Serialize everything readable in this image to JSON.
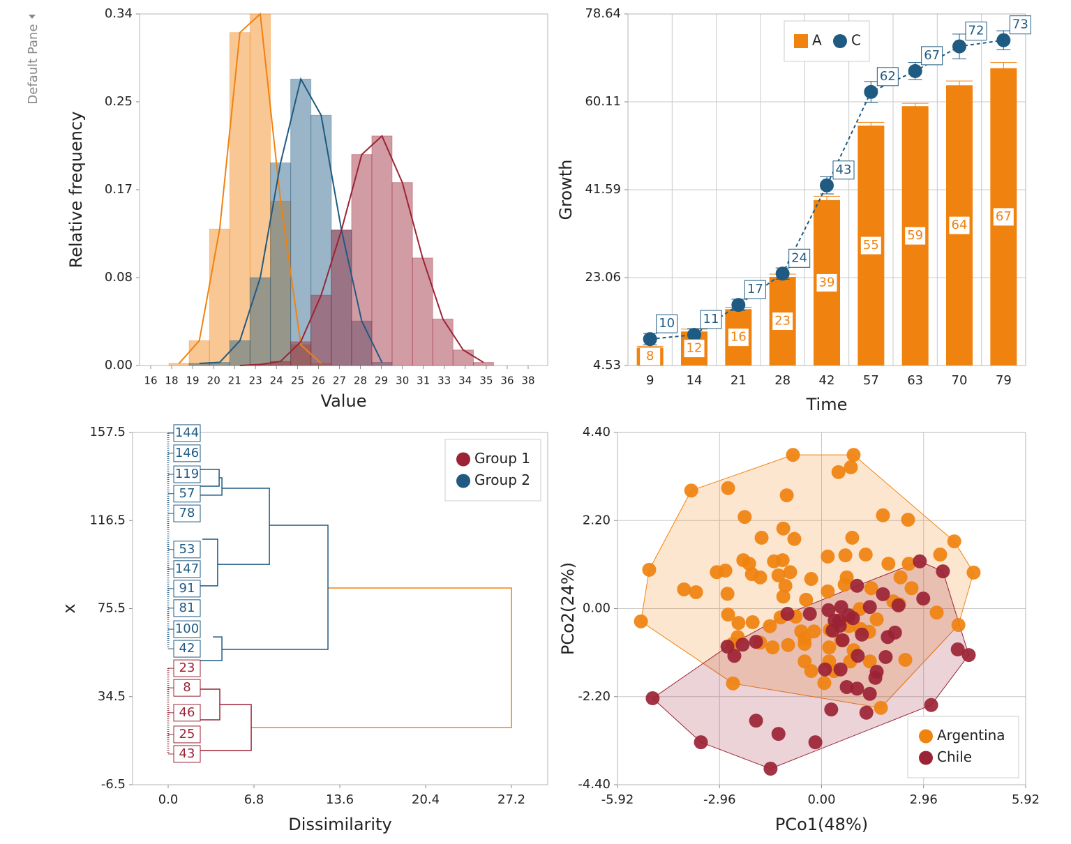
{
  "pane_label": "Default Pane",
  "chart_data": [
    {
      "type": "histogram",
      "x_label": "Value",
      "y_label": "Relative frequency",
      "xlim": [
        15.35,
        39.14
      ],
      "ylim": [
        0,
        0.34
      ],
      "xticks": [
        16,
        {
          "value": 17.22,
          "label": "18"
        },
        {
          "value": 18.44,
          "label": "19"
        },
        {
          "value": 19.67,
          "label": "20"
        },
        {
          "value": 20.89,
          "label": "21"
        },
        {
          "value": 22.11,
          "label": "23"
        },
        {
          "value": 23.33,
          "label": "24"
        },
        {
          "value": 24.56,
          "label": "25"
        },
        {
          "value": 25.78,
          "label": "26"
        },
        27,
        {
          "value": 28.22,
          "label": "28"
        },
        {
          "value": 29.44,
          "label": "29"
        },
        {
          "value": 30.67,
          "label": "30"
        },
        {
          "value": 31.89,
          "label": "31"
        },
        {
          "value": 33.11,
          "label": "33"
        },
        {
          "value": 34.33,
          "label": "34"
        },
        {
          "value": 35.56,
          "label": "35"
        },
        {
          "value": 36.78,
          "label": "36"
        },
        38
      ],
      "yticks": [
        {
          "value": 0,
          "label": "0.00"
        },
        {
          "value": 0.085,
          "label": "0.08"
        },
        0.17,
        {
          "value": 0.255,
          "label": "0.25"
        },
        0.34
      ],
      "bins": [
        17.06,
        18.24,
        19.43,
        20.61,
        21.79,
        22.98,
        24.16,
        25.34,
        26.53,
        27.71,
        28.89,
        30.07,
        31.26,
        32.44,
        33.62,
        34.81,
        35.99
      ],
      "frequency_polygon": true,
      "grid": false,
      "series": [
        {
          "color": "#f0820f",
          "values": [
            0.002,
            0.024,
            0.132,
            0.322,
            0.34,
            0.159,
            0.02,
            0.002,
            null,
            null,
            null,
            null,
            null,
            null,
            null,
            null
          ]
        },
        {
          "color": "#1f5a82",
          "values": [
            null,
            0.002,
            0.003,
            0.024,
            0.085,
            0.196,
            0.277,
            0.242,
            0.131,
            0.043,
            0.003,
            null,
            null,
            null,
            null,
            null
          ]
        },
        {
          "color": "#9b2335",
          "values": [
            null,
            null,
            null,
            0,
            0.001,
            0.004,
            0.023,
            0.068,
            0.131,
            0.204,
            0.222,
            0.177,
            0.104,
            0.045,
            0.015,
            0.003
          ]
        }
      ]
    },
    {
      "type": "bar",
      "x_label": "Time",
      "y_label": "Growth",
      "categories": [
        "9",
        "14",
        "21",
        "28",
        "42",
        "57",
        "63",
        "70",
        "79"
      ],
      "ylim": [
        4.53,
        78.64
      ],
      "yticks": [
        4.53,
        23.06,
        41.59,
        60.11,
        78.64
      ],
      "grid": true,
      "legend": "upper-center",
      "series": [
        {
          "name": "A",
          "type": "bar",
          "color": "#f0820f",
          "values": [
            8.3,
            11.7,
            16.4,
            23.2,
            39.4,
            55.1,
            59.2,
            63.6,
            67.2
          ],
          "value_labels": [
            "8",
            "12",
            "16",
            "23",
            "39",
            "55",
            "59",
            "64",
            "67"
          ],
          "errors": [
            0.3,
            0.5,
            0.4,
            0.6,
            0.8,
            0.7,
            0.6,
            0.9,
            1.2
          ]
        },
        {
          "name": "C",
          "type": "line",
          "color": "#1f5a82",
          "dashed": true,
          "values": [
            10.1,
            11,
            17.3,
            23.9,
            42.5,
            62.2,
            66.6,
            71.8,
            73.1
          ],
          "value_labels": [
            "10",
            "11",
            "17",
            "24",
            "43",
            "62",
            "67",
            "72",
            "73"
          ],
          "errors": [
            1.2,
            1.3,
            1.2,
            1.2,
            1.8,
            2.2,
            1.8,
            2.6,
            2.0
          ]
        }
      ]
    },
    {
      "type": "dendrogram",
      "x_label": "Dissimilarity",
      "y_label": "x",
      "xlim": [
        -2.82,
        30.07
      ],
      "ylim": [
        -6.5,
        157.5
      ],
      "xticks": [
        {
          "value": 0,
          "label": "0.0"
        },
        6.8,
        13.6,
        20.4,
        27.2
      ],
      "yticks": [
        -6.5,
        34.5,
        75.5,
        116.5,
        157.5
      ],
      "grid": false,
      "legend": "upper-right",
      "links": [
        {
          "color": "#f0820f",
          "height": 27.2,
          "y": [
            85.1,
            20.1
          ],
          "x": [
            12.66,
            6.58
          ]
        },
        {
          "color": "#1f5a82",
          "height": 12.66,
          "y": [
            114.3,
            56.5
          ],
          "x": [
            8.02,
            4.26
          ]
        },
        {
          "color": "#1f5a82",
          "height": 8.02,
          "y": [
            131.5,
            96.1
          ],
          "x": [
            4.26,
            3.92
          ]
        },
        {
          "color": "#1f5a82",
          "height": 4.26,
          "y": [
            136.4,
            128.3
          ],
          "x": [
            4.04,
            2.16
          ]
        },
        {
          "color": "#1f5a82",
          "height": 4.04,
          "y": [
            140.3,
            132.5
          ],
          "x": [
            0.77,
            1.49
          ]
        },
        {
          "color": "#1f5a82",
          "height": 3.92,
          "y": [
            107.8,
            86.1
          ],
          "x": [
            2.71,
            2.27
          ]
        },
        {
          "color": "#1f5a82",
          "height": 4.26,
          "y": [
            62.3,
            51.3
          ],
          "x": [
            3.54,
            2.16
          ]
        },
        {
          "color": "#9b2335",
          "height": 6.58,
          "y": [
            30.8,
            9.4
          ],
          "x": [
            4.09,
            1.16
          ]
        },
        {
          "color": "#9b2335",
          "height": 4.09,
          "y": [
            38.0,
            23.7
          ],
          "x": [
            2.05,
            0.88
          ]
        }
      ],
      "series": [
        {
          "name": "Group 1",
          "color": "#9b2335",
          "leaves": {
            "labels": [
              "23",
              "8",
              "46",
              "25",
              "43"
            ],
            "y": [
              47.7,
              38.6,
              27.0,
              16.9,
              7.8
            ]
          }
        },
        {
          "name": "Group 2",
          "color": "#1f5a82",
          "leaves": {
            "labels": [
              "144",
              "146",
              "119",
              "57",
              "78",
              "53",
              "147",
              "91",
              "81",
              "100",
              "42"
            ],
            "y": [
              157.2,
              147.8,
              138.0,
              129.0,
              119.8,
              103.0,
              93.9,
              84.8,
              75.7,
              65.9,
              56.8
            ]
          }
        }
      ]
    },
    {
      "type": "scatter",
      "x_label": "PCo1(48%)",
      "y_label": "PCo2(24%)",
      "xlim": [
        -5.92,
        5.92
      ],
      "ylim": [
        -4.4,
        4.4
      ],
      "xticks": [
        -5.92,
        -2.96,
        {
          "value": 0,
          "label": "0.00"
        },
        2.96,
        5.92
      ],
      "yticks": [
        {
          "value": -4.4,
          "label": "-4.40"
        },
        {
          "value": -2.2,
          "label": "-2.20"
        },
        {
          "value": 0,
          "label": "0.00"
        },
        {
          "value": 2.2,
          "label": "2.20"
        },
        {
          "value": 4.4,
          "label": "4.40"
        }
      ],
      "grid": true,
      "hull": true,
      "legend": "lower-right",
      "series": [
        {
          "name": "Argentina",
          "color": "#f0820f",
          "x": [
            -0.83,
            0.93,
            0.85,
            0.49,
            -3.78,
            -2.71,
            -1.01,
            -2.23,
            1.78,
            2.51,
            -1.11,
            -0.79,
            -1.74,
            3.85,
            -5.0,
            0.89,
            -2.27,
            -2.1,
            -1.38,
            -1.13,
            0.18,
            0.69,
            1.28,
            1.94,
            2.53,
            3.44,
            4.41,
            -3.04,
            -2.79,
            -2.02,
            -1.78,
            -1.25,
            -0.91,
            -0.3,
            0.73,
            2.29,
            -3.99,
            -3.64,
            -2.73,
            -1.11,
            -0.45,
            0.18,
            -1.05,
            0.67,
            1.44,
            2.08,
            2.61,
            -1.19,
            -2.71,
            -2.41,
            -2.0,
            -1.5,
            -0.75,
            -0.59,
            -0.22,
            0.24,
            -0.49,
            0.79,
            1.13,
            1.6,
            2.25,
            3.34,
            3.97,
            -5.24,
            -2.57,
            -1.78,
            -1.42,
            -0.97,
            -0.49,
            0.22,
            0.57,
            0.93,
            1.38,
            -0.49,
            -0.3,
            0.22,
            0.36,
            0.83,
            1.4,
            2.43,
            0.08,
            -2.57,
            1.72,
            -2.43,
            1.11
          ],
          "y": [
            3.84,
            3.84,
            3.53,
            3.41,
            2.95,
            3.01,
            2.83,
            2.29,
            2.33,
            2.22,
            2.0,
            1.74,
            1.77,
            1.68,
            0.97,
            1.77,
            1.21,
            1.12,
            1.18,
            1.21,
            1.3,
            1.33,
            1.35,
            1.12,
            1.12,
            1.35,
            0.9,
            0.91,
            0.95,
            0.86,
            0.78,
            0.83,
            0.91,
            0.74,
            0.78,
            0.78,
            0.48,
            0.41,
            0.37,
            0.3,
            0.22,
            0.43,
            0.57,
            0.6,
            0.51,
            0.18,
            0.51,
            -0.22,
            -0.15,
            -0.36,
            -0.34,
            -0.44,
            -0.2,
            -0.57,
            -0.57,
            -0.53,
            -0.74,
            -0.44,
            -0.51,
            -0.27,
            0.11,
            -0.1,
            -0.41,
            -0.32,
            -0.88,
            -0.85,
            -0.97,
            -0.91,
            -0.88,
            -0.97,
            -0.79,
            -1.04,
            -0.58,
            -1.32,
            -1.56,
            -1.32,
            -1.56,
            -1.32,
            -1.32,
            -1.28,
            -1.86,
            -1.87,
            -2.48,
            -0.71,
            -0.01
          ]
        },
        {
          "name": "Chile",
          "color": "#9b2335",
          "x": [
            2.85,
            3.52,
            1.03,
            1.78,
            2.95,
            -0.34,
            -0.99,
            0.2,
            0.57,
            0.91,
            0.38,
            0.79,
            1.4,
            2.23,
            0.32,
            0.53,
            0.61,
            -2.73,
            -2.53,
            -2.29,
            -1.9,
            1.92,
            2.13,
            1.05,
            1.86,
            0.1,
            0.55,
            1.6,
            1.56,
            0.73,
            1.03,
            1.4,
            3.95,
            4.27,
            -4.9,
            0.28,
            1.3,
            3.18,
            -1.9,
            -1.25,
            -3.5,
            -0.18,
            -1.48,
            0.51,
            1.17
          ],
          "y": [
            1.18,
            0.93,
            0.57,
            0.36,
            0.25,
            -0.13,
            -0.13,
            -0.04,
            0.04,
            -0.24,
            -0.3,
            -0.17,
            0.04,
            0.08,
            -0.55,
            -0.43,
            -0.79,
            -0.95,
            -1.18,
            -0.9,
            -0.83,
            -0.71,
            -0.6,
            -1.18,
            -1.21,
            -1.52,
            -1.52,
            -1.58,
            -1.73,
            -1.96,
            -2.0,
            -2.13,
            -1.02,
            -1.16,
            -2.24,
            -2.52,
            -2.6,
            -2.41,
            -2.8,
            -3.13,
            -3.34,
            -3.34,
            -4.0,
            -0.3,
            -0.65
          ]
        }
      ]
    }
  ]
}
